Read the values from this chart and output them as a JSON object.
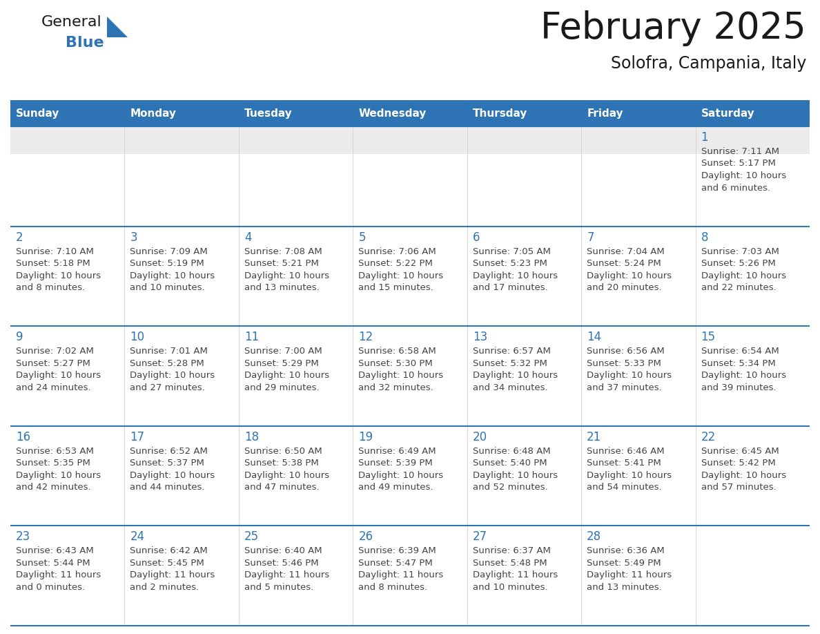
{
  "title": "February 2025",
  "subtitle": "Solofra, Campania, Italy",
  "header_color": "#2E74B5",
  "header_text_color": "#FFFFFF",
  "border_color": "#2E74B5",
  "title_color": "#1a1a1a",
  "subtitle_color": "#1a1a1a",
  "day_number_color": "#2E74B5",
  "cell_text_color": "#444444",
  "row1_bg": "#EBEBEB",
  "cell_bg": "#FFFFFF",
  "days_of_week": [
    "Sunday",
    "Monday",
    "Tuesday",
    "Wednesday",
    "Thursday",
    "Friday",
    "Saturday"
  ],
  "weeks": [
    [
      {
        "day": "",
        "info": ""
      },
      {
        "day": "",
        "info": ""
      },
      {
        "day": "",
        "info": ""
      },
      {
        "day": "",
        "info": ""
      },
      {
        "day": "",
        "info": ""
      },
      {
        "day": "",
        "info": ""
      },
      {
        "day": "1",
        "info": "Sunrise: 7:11 AM\nSunset: 5:17 PM\nDaylight: 10 hours\nand 6 minutes."
      }
    ],
    [
      {
        "day": "2",
        "info": "Sunrise: 7:10 AM\nSunset: 5:18 PM\nDaylight: 10 hours\nand 8 minutes."
      },
      {
        "day": "3",
        "info": "Sunrise: 7:09 AM\nSunset: 5:19 PM\nDaylight: 10 hours\nand 10 minutes."
      },
      {
        "day": "4",
        "info": "Sunrise: 7:08 AM\nSunset: 5:21 PM\nDaylight: 10 hours\nand 13 minutes."
      },
      {
        "day": "5",
        "info": "Sunrise: 7:06 AM\nSunset: 5:22 PM\nDaylight: 10 hours\nand 15 minutes."
      },
      {
        "day": "6",
        "info": "Sunrise: 7:05 AM\nSunset: 5:23 PM\nDaylight: 10 hours\nand 17 minutes."
      },
      {
        "day": "7",
        "info": "Sunrise: 7:04 AM\nSunset: 5:24 PM\nDaylight: 10 hours\nand 20 minutes."
      },
      {
        "day": "8",
        "info": "Sunrise: 7:03 AM\nSunset: 5:26 PM\nDaylight: 10 hours\nand 22 minutes."
      }
    ],
    [
      {
        "day": "9",
        "info": "Sunrise: 7:02 AM\nSunset: 5:27 PM\nDaylight: 10 hours\nand 24 minutes."
      },
      {
        "day": "10",
        "info": "Sunrise: 7:01 AM\nSunset: 5:28 PM\nDaylight: 10 hours\nand 27 minutes."
      },
      {
        "day": "11",
        "info": "Sunrise: 7:00 AM\nSunset: 5:29 PM\nDaylight: 10 hours\nand 29 minutes."
      },
      {
        "day": "12",
        "info": "Sunrise: 6:58 AM\nSunset: 5:30 PM\nDaylight: 10 hours\nand 32 minutes."
      },
      {
        "day": "13",
        "info": "Sunrise: 6:57 AM\nSunset: 5:32 PM\nDaylight: 10 hours\nand 34 minutes."
      },
      {
        "day": "14",
        "info": "Sunrise: 6:56 AM\nSunset: 5:33 PM\nDaylight: 10 hours\nand 37 minutes."
      },
      {
        "day": "15",
        "info": "Sunrise: 6:54 AM\nSunset: 5:34 PM\nDaylight: 10 hours\nand 39 minutes."
      }
    ],
    [
      {
        "day": "16",
        "info": "Sunrise: 6:53 AM\nSunset: 5:35 PM\nDaylight: 10 hours\nand 42 minutes."
      },
      {
        "day": "17",
        "info": "Sunrise: 6:52 AM\nSunset: 5:37 PM\nDaylight: 10 hours\nand 44 minutes."
      },
      {
        "day": "18",
        "info": "Sunrise: 6:50 AM\nSunset: 5:38 PM\nDaylight: 10 hours\nand 47 minutes."
      },
      {
        "day": "19",
        "info": "Sunrise: 6:49 AM\nSunset: 5:39 PM\nDaylight: 10 hours\nand 49 minutes."
      },
      {
        "day": "20",
        "info": "Sunrise: 6:48 AM\nSunset: 5:40 PM\nDaylight: 10 hours\nand 52 minutes."
      },
      {
        "day": "21",
        "info": "Sunrise: 6:46 AM\nSunset: 5:41 PM\nDaylight: 10 hours\nand 54 minutes."
      },
      {
        "day": "22",
        "info": "Sunrise: 6:45 AM\nSunset: 5:42 PM\nDaylight: 10 hours\nand 57 minutes."
      }
    ],
    [
      {
        "day": "23",
        "info": "Sunrise: 6:43 AM\nSunset: 5:44 PM\nDaylight: 11 hours\nand 0 minutes."
      },
      {
        "day": "24",
        "info": "Sunrise: 6:42 AM\nSunset: 5:45 PM\nDaylight: 11 hours\nand 2 minutes."
      },
      {
        "day": "25",
        "info": "Sunrise: 6:40 AM\nSunset: 5:46 PM\nDaylight: 11 hours\nand 5 minutes."
      },
      {
        "day": "26",
        "info": "Sunrise: 6:39 AM\nSunset: 5:47 PM\nDaylight: 11 hours\nand 8 minutes."
      },
      {
        "day": "27",
        "info": "Sunrise: 6:37 AM\nSunset: 5:48 PM\nDaylight: 11 hours\nand 10 minutes."
      },
      {
        "day": "28",
        "info": "Sunrise: 6:36 AM\nSunset: 5:49 PM\nDaylight: 11 hours\nand 13 minutes."
      },
      {
        "day": "",
        "info": ""
      }
    ]
  ],
  "logo_text_general": "General",
  "logo_text_blue": "Blue",
  "logo_triangle_color": "#2E74B5",
  "logo_general_color": "#1a1a1a"
}
